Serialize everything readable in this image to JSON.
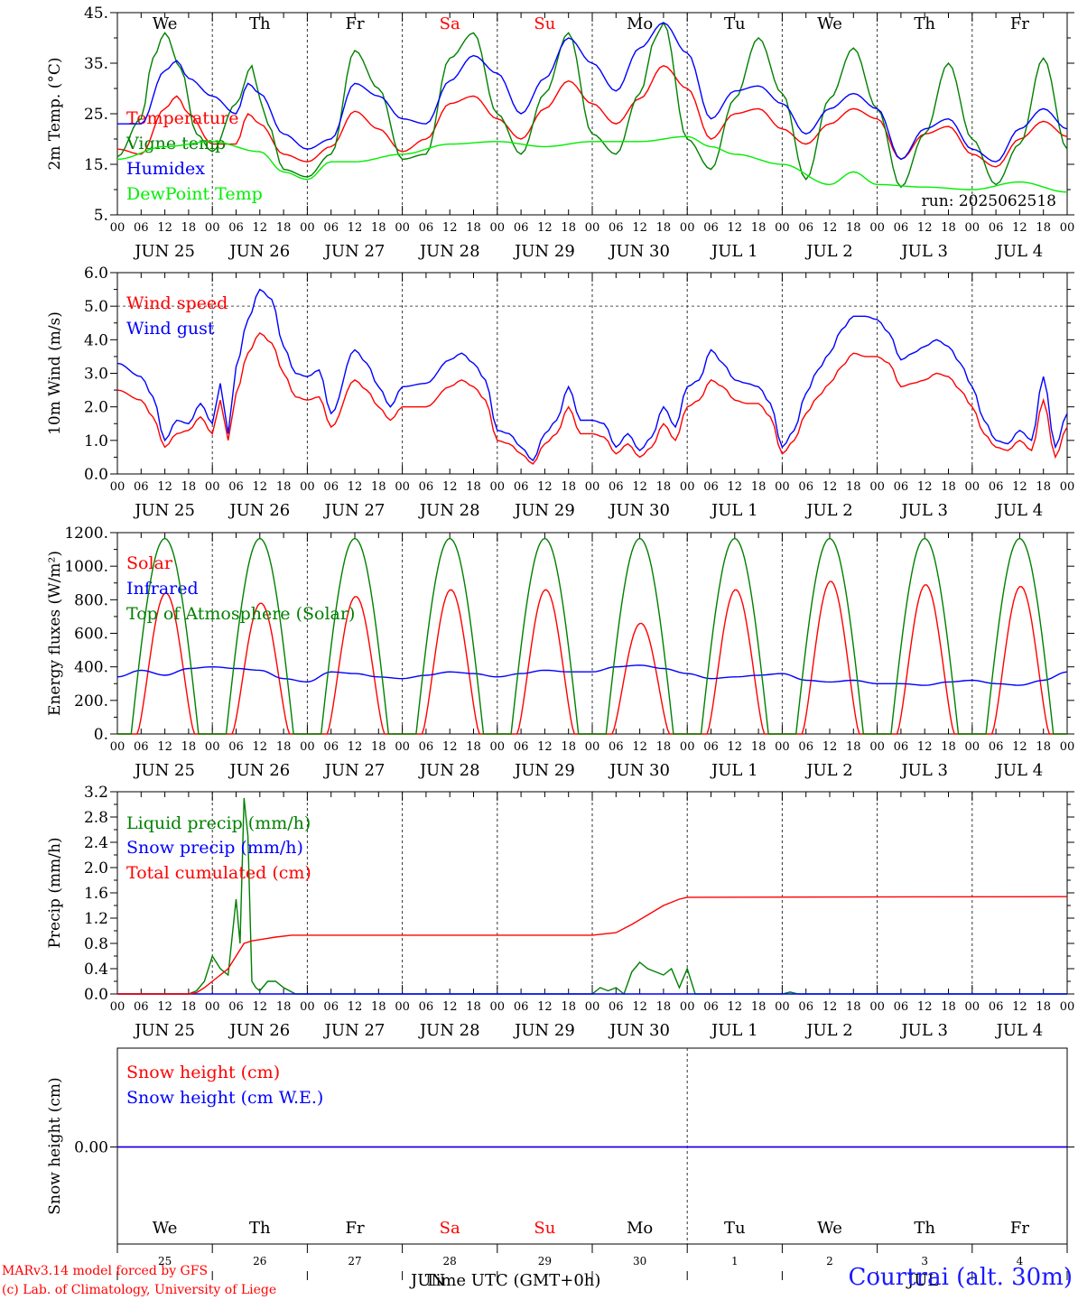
{
  "colors": {
    "red": "#ff0000",
    "green": "#008000",
    "blue": "#0000ff",
    "lightgreen": "#00ee00",
    "axis": "#000000",
    "holiday": "#ff0000"
  },
  "days": {
    "weekdays": [
      "We",
      "Th",
      "Fr",
      "Sa",
      "Su",
      "Mo",
      "Tu",
      "We",
      "Th",
      "Fr"
    ],
    "weekend_flags": [
      false,
      false,
      false,
      true,
      true,
      false,
      false,
      false,
      false,
      false
    ],
    "date_labels": [
      "JUN 25",
      "JUN 26",
      "JUN 27",
      "JUN 28",
      "JUN 29",
      "JUN 30",
      "JUL  1",
      "JUL  2",
      "JUL  3",
      "JUL  4"
    ],
    "hour_ticks": [
      "00",
      "06",
      "12",
      "18"
    ],
    "end_tick": "00",
    "day_numbers": [
      "25",
      "26",
      "27",
      "28",
      "29",
      "30",
      "1",
      "2",
      "3",
      "4"
    ]
  },
  "run_label": "run: 2025062518",
  "footer": {
    "model": "MARv3.14 model forced by GFS",
    "lab": "(c) Lab. of Climatology, University of Liege",
    "xaxis_title": "Time UTC (GMT+0h)",
    "month_left": "JUN",
    "month_right": "JUL",
    "station": "Courtrai (alt. 30m)"
  },
  "chart_data": [
    {
      "type": "line",
      "ylabel": "2m Temp. (°C)",
      "ylim": [
        5,
        45
      ],
      "yticks": [
        "45.",
        "35.",
        "25.",
        "15.",
        "5."
      ],
      "ytick_values": [
        45,
        35,
        25,
        15,
        5
      ],
      "x_unit": "hours since JUN 25 00 UTC",
      "series": [
        {
          "name": "Temperature",
          "color": "red",
          "x": [
            0,
            6,
            12,
            15,
            18,
            24,
            30,
            33,
            36,
            42,
            48,
            54,
            60,
            66,
            72,
            78,
            84,
            90,
            96,
            102,
            108,
            114,
            120,
            126,
            132,
            138,
            144,
            150,
            156,
            162,
            168,
            174,
            180,
            186,
            192,
            198,
            204,
            210,
            216,
            222,
            228,
            234,
            240
          ],
          "y": [
            18,
            17,
            26,
            28.5,
            25,
            19,
            19,
            25,
            23,
            17,
            15.5,
            18.5,
            25.5,
            22,
            17.5,
            20,
            27,
            28.5,
            24,
            20,
            26,
            31.5,
            27,
            23,
            28,
            34.5,
            30,
            20,
            25,
            26,
            22,
            19,
            23,
            26,
            24,
            16,
            21,
            22.5,
            17,
            14.5,
            20,
            23.5,
            20.5
          ]
        },
        {
          "name": "Vigne temp",
          "color": "green",
          "x": [
            0,
            6,
            9,
            12,
            16,
            20,
            24,
            30,
            34,
            36,
            38,
            42,
            48,
            54,
            60,
            66,
            72,
            78,
            84,
            90,
            96,
            102,
            108,
            114,
            120,
            126,
            132,
            136,
            138,
            144,
            150,
            156,
            162,
            168,
            174,
            180,
            186,
            192,
            198,
            204,
            210,
            216,
            222,
            228,
            234,
            240
          ],
          "y": [
            16.5,
            24,
            36,
            41,
            34,
            21,
            17.5,
            27,
            34.5,
            28,
            23,
            14,
            12.5,
            17,
            37.5,
            30,
            16,
            17,
            36,
            41,
            25,
            17,
            29,
            41,
            21,
            17,
            29,
            40,
            43,
            20,
            14,
            28,
            40,
            29,
            12,
            28,
            38,
            26,
            10.5,
            21,
            35,
            20,
            11,
            19,
            36,
            18
          ]
        },
        {
          "name": "Humidex",
          "color": "blue",
          "x": [
            0,
            6,
            12,
            15,
            18,
            24,
            30,
            33,
            36,
            42,
            48,
            54,
            60,
            66,
            72,
            78,
            84,
            90,
            96,
            102,
            108,
            114,
            120,
            126,
            132,
            138,
            144,
            150,
            156,
            162,
            168,
            174,
            180,
            186,
            192,
            198,
            204,
            210,
            216,
            222,
            228,
            234,
            240
          ],
          "y": [
            23,
            23,
            33.5,
            35.5,
            32,
            28.5,
            25,
            31,
            29,
            21,
            18,
            20,
            31,
            28.5,
            24,
            23,
            31.5,
            36.5,
            33,
            25,
            32,
            40,
            35,
            29.5,
            38,
            43,
            37,
            24,
            29.5,
            30.5,
            27,
            21,
            26,
            29,
            26,
            16,
            22,
            24,
            18,
            15.5,
            22,
            26,
            22
          ]
        },
        {
          "name": "DewPoint Temp",
          "color": "lightgreen",
          "x": [
            0,
            12,
            24,
            36,
            42,
            48,
            54,
            60,
            72,
            84,
            96,
            108,
            120,
            132,
            144,
            150,
            156,
            168,
            180,
            186,
            192,
            204,
            216,
            228,
            240
          ],
          "y": [
            16,
            18.5,
            19.5,
            17.5,
            13.5,
            12,
            15.5,
            15.5,
            17,
            19,
            19.5,
            18.5,
            19.5,
            19.5,
            20.5,
            18.5,
            17,
            15,
            11,
            13.5,
            11,
            10.5,
            10,
            11.5,
            9.5
          ]
        }
      ]
    },
    {
      "type": "line",
      "ylabel": "10m Wind (m/s)",
      "ylim": [
        0,
        6
      ],
      "yticks": [
        "6.0",
        "5.0",
        "4.0",
        "3.0",
        "2.0",
        "1.0",
        "0.0"
      ],
      "ytick_values": [
        6,
        5,
        4,
        3,
        2,
        1,
        0
      ],
      "reference_line": 5.0,
      "x_unit": "hours since JUN 25 00 UTC",
      "series": [
        {
          "name": "Wind speed",
          "color": "red",
          "x": [
            0,
            6,
            9,
            12,
            15,
            18,
            21,
            24,
            26,
            28,
            30,
            33,
            36,
            39,
            42,
            45,
            48,
            51,
            54,
            60,
            63,
            66,
            69,
            72,
            78,
            84,
            87,
            90,
            93,
            96,
            99,
            102,
            105,
            108,
            111,
            114,
            117,
            120,
            123,
            126,
            129,
            132,
            135,
            138,
            141,
            144,
            147,
            150,
            153,
            156,
            159,
            162,
            165,
            168,
            171,
            174,
            177,
            180,
            183,
            186,
            189,
            192,
            195,
            198,
            201,
            204,
            207,
            210,
            213,
            216,
            219,
            222,
            225,
            228,
            231,
            234,
            237,
            240
          ],
          "y": [
            2.5,
            2.2,
            1.7,
            0.8,
            1.2,
            1.3,
            1.7,
            1.2,
            2.2,
            1.0,
            2.4,
            3.6,
            4.2,
            3.9,
            3.0,
            2.3,
            2.2,
            2.3,
            1.4,
            2.8,
            2.5,
            2.0,
            1.6,
            2.0,
            2.0,
            2.6,
            2.8,
            2.6,
            2.2,
            1.0,
            0.9,
            0.6,
            0.3,
            0.9,
            1.2,
            2.0,
            1.2,
            1.2,
            1.1,
            0.6,
            0.9,
            0.5,
            0.8,
            1.5,
            1.0,
            2.0,
            2.2,
            2.8,
            2.6,
            2.2,
            2.1,
            2.1,
            1.7,
            0.6,
            1.0,
            1.8,
            2.3,
            2.7,
            3.2,
            3.6,
            3.5,
            3.5,
            3.3,
            2.6,
            2.7,
            2.8,
            3.0,
            2.9,
            2.5,
            2.0,
            1.2,
            0.8,
            0.7,
            1.0,
            0.7,
            2.2,
            0.5,
            1.4
          ]
        },
        {
          "name": "Wind gust",
          "color": "blue",
          "x": [
            0,
            6,
            9,
            12,
            15,
            18,
            21,
            24,
            26,
            28,
            30,
            33,
            36,
            39,
            42,
            45,
            48,
            51,
            54,
            60,
            63,
            66,
            69,
            72,
            78,
            84,
            87,
            90,
            93,
            96,
            99,
            102,
            105,
            108,
            111,
            114,
            117,
            120,
            123,
            126,
            129,
            132,
            135,
            138,
            141,
            144,
            147,
            150,
            153,
            156,
            159,
            162,
            165,
            168,
            171,
            174,
            177,
            180,
            183,
            186,
            189,
            192,
            195,
            198,
            201,
            204,
            207,
            210,
            213,
            216,
            219,
            222,
            225,
            228,
            231,
            234,
            237,
            240
          ],
          "y": [
            3.3,
            2.9,
            2.3,
            1.0,
            1.6,
            1.5,
            2.1,
            1.5,
            2.7,
            1.2,
            3.2,
            4.6,
            5.5,
            5.2,
            3.8,
            3.0,
            2.9,
            3.1,
            1.8,
            3.7,
            3.3,
            2.6,
            2.0,
            2.6,
            2.7,
            3.4,
            3.6,
            3.3,
            2.8,
            1.3,
            1.2,
            0.8,
            0.4,
            1.2,
            1.6,
            2.6,
            1.6,
            1.6,
            1.5,
            0.8,
            1.2,
            0.7,
            1.1,
            2.0,
            1.4,
            2.6,
            2.8,
            3.7,
            3.3,
            2.8,
            2.7,
            2.6,
            2.1,
            0.8,
            1.3,
            2.4,
            3.1,
            3.6,
            4.3,
            4.7,
            4.7,
            4.6,
            4.2,
            3.4,
            3.6,
            3.8,
            4.0,
            3.8,
            3.3,
            2.6,
            1.6,
            1.0,
            0.9,
            1.3,
            1.0,
            2.9,
            0.8,
            1.8
          ]
        }
      ]
    },
    {
      "type": "line",
      "ylabel": "Energy fluxes (W/m²)",
      "ylim": [
        0,
        1200
      ],
      "yticks": [
        "1200.",
        "1000.",
        "800.",
        "600.",
        "400.",
        "200.",
        "0."
      ],
      "ytick_values": [
        1200,
        1000,
        800,
        600,
        400,
        200,
        0
      ],
      "x_unit": "hours since JUN 25 00 UTC",
      "daily_peaks": {
        "top_of_atmosphere": 1165,
        "solar": [
          840,
          780,
          820,
          860,
          860,
          660,
          860,
          910,
          890,
          880
        ]
      },
      "series": [
        {
          "name": "Solar",
          "color": "red"
        },
        {
          "name": "Infrared",
          "color": "blue",
          "x": [
            0,
            6,
            12,
            18,
            24,
            30,
            36,
            42,
            48,
            54,
            60,
            66,
            72,
            78,
            84,
            90,
            96,
            102,
            108,
            114,
            120,
            126,
            132,
            138,
            144,
            150,
            156,
            162,
            168,
            174,
            180,
            186,
            192,
            198,
            204,
            210,
            216,
            222,
            228,
            234,
            240
          ],
          "y": [
            340,
            380,
            350,
            390,
            400,
            390,
            380,
            330,
            310,
            370,
            360,
            340,
            330,
            350,
            370,
            360,
            340,
            360,
            380,
            370,
            370,
            400,
            410,
            390,
            360,
            330,
            340,
            350,
            360,
            320,
            310,
            320,
            300,
            300,
            290,
            310,
            320,
            300,
            290,
            320,
            370
          ]
        },
        {
          "name": "Top of Atmosphere (Solar)",
          "color": "green"
        }
      ]
    },
    {
      "type": "line",
      "ylabel": "Precip (mm/h)",
      "ylim": [
        0,
        3.2
      ],
      "yticks": [
        "3.2",
        "2.8",
        "2.4",
        "2.0",
        "1.6",
        "1.2",
        "0.8",
        "0.4",
        "0.0"
      ],
      "ytick_values": [
        3.2,
        2.8,
        2.4,
        2.0,
        1.6,
        1.2,
        0.8,
        0.4,
        0.0
      ],
      "x_unit": "hours since JUN 25 00 UTC",
      "series": [
        {
          "name": "Liquid precip (mm/h)",
          "color": "green",
          "x": [
            0,
            18,
            20,
            22,
            24,
            26,
            28,
            30,
            31,
            32,
            33,
            34,
            35,
            36,
            38,
            40,
            42,
            45,
            48,
            120,
            122,
            124,
            126,
            128,
            130,
            132,
            134,
            136,
            138,
            140,
            142,
            144,
            146,
            150,
            168,
            170,
            172,
            240
          ],
          "y": [
            0,
            0,
            0.05,
            0.2,
            0.6,
            0.4,
            0.3,
            1.5,
            0.8,
            3.1,
            2.5,
            0.2,
            0.1,
            0.05,
            0.2,
            0.2,
            0.1,
            0,
            0,
            0,
            0.1,
            0.05,
            0.1,
            0,
            0.35,
            0.5,
            0.4,
            0.35,
            0.3,
            0.4,
            0.1,
            0.4,
            0,
            0,
            0,
            0.03,
            0,
            0
          ]
        },
        {
          "name": "Snow precip (mm/h)",
          "color": "blue",
          "x": [
            0,
            240
          ],
          "y": [
            0,
            0
          ]
        },
        {
          "name": "Total cumulated (cm)",
          "color": "red",
          "x": [
            0,
            18,
            20,
            22,
            24,
            26,
            28,
            30,
            32,
            34,
            36,
            40,
            44,
            48,
            96,
            120,
            126,
            130,
            134,
            138,
            142,
            144,
            240
          ],
          "y": [
            0,
            0,
            0.02,
            0.1,
            0.2,
            0.3,
            0.4,
            0.6,
            0.8,
            0.84,
            0.86,
            0.9,
            0.93,
            0.93,
            0.93,
            0.93,
            0.97,
            1.1,
            1.25,
            1.4,
            1.5,
            1.53,
            1.54
          ]
        }
      ]
    },
    {
      "type": "line",
      "ylabel": "Snow height (cm)",
      "yticks": [
        "0.00"
      ],
      "ytick_values": [
        0
      ],
      "x_unit": "hours since JUN 25 00 UTC",
      "series": [
        {
          "name": "Snow height (cm)",
          "color": "red",
          "x": [
            0,
            240
          ],
          "y": [
            0,
            0
          ]
        },
        {
          "name": "Snow height (cm W.E.)",
          "color": "blue",
          "x": [
            0,
            240
          ],
          "y": [
            0,
            0
          ]
        }
      ]
    }
  ]
}
